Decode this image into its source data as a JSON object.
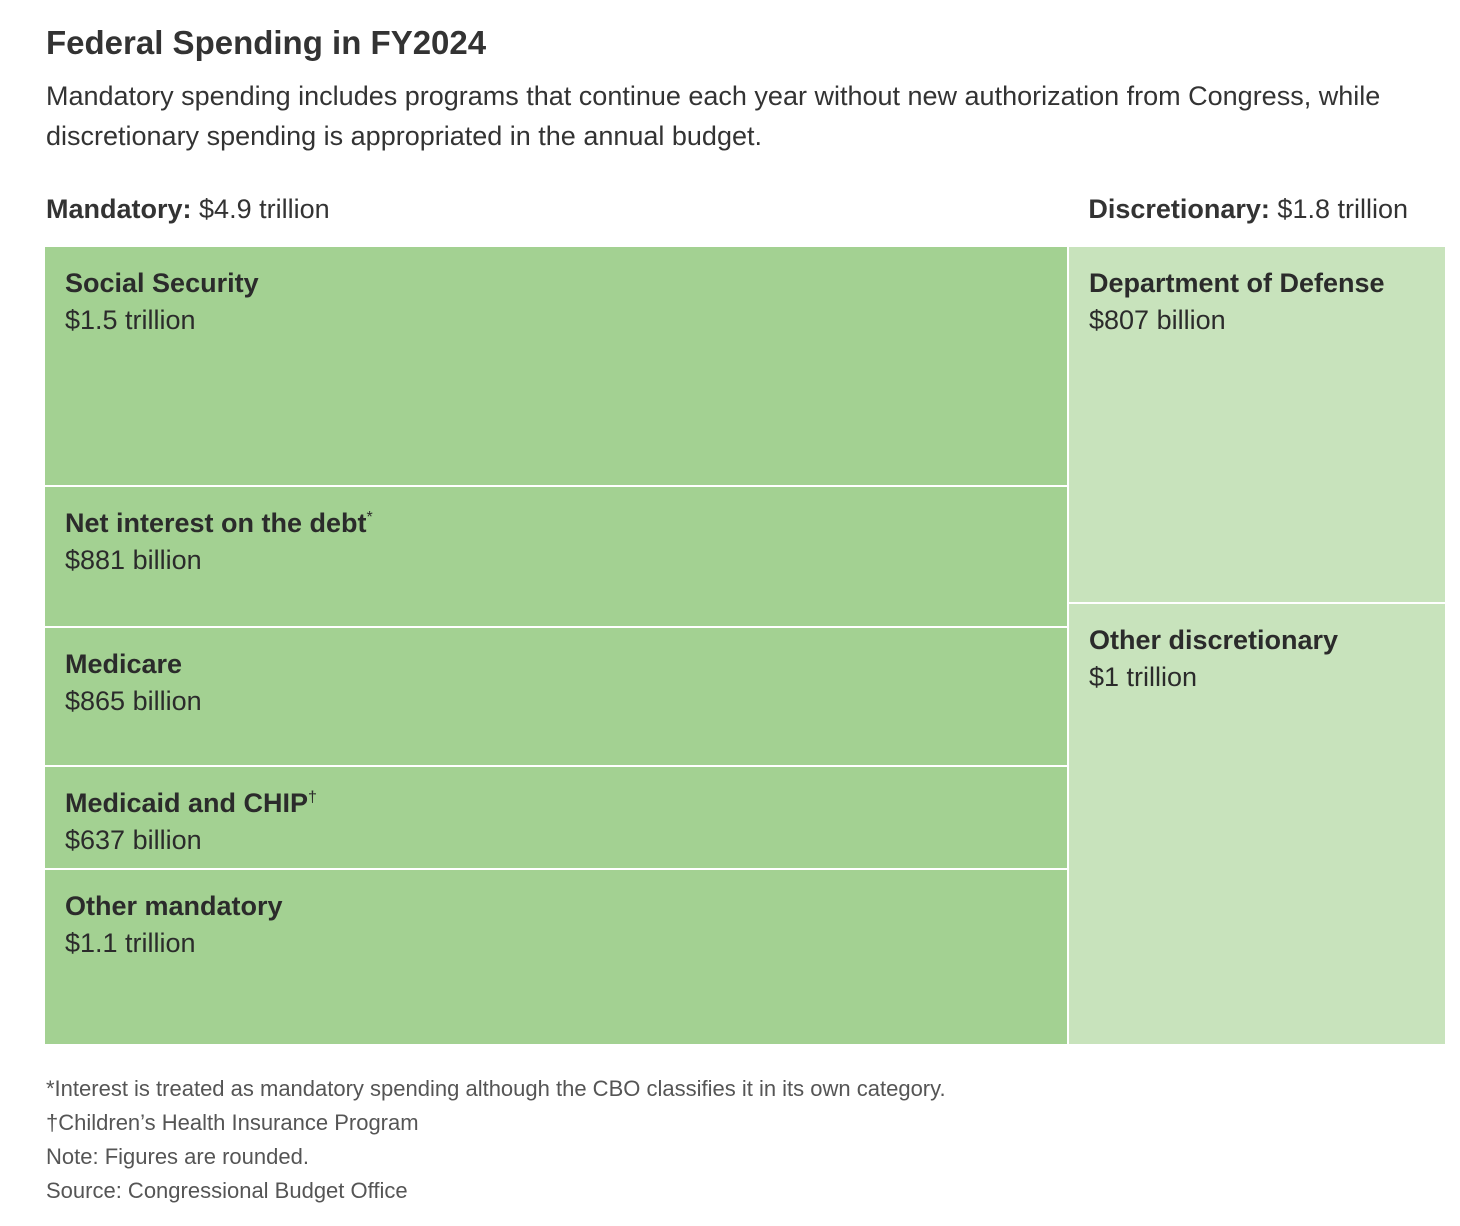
{
  "title": "Federal Spending in FY2024",
  "subtitle": "Mandatory spending includes programs that continue each year without new authorization from Congress, while discretionary spending is appropriated in the annual budget.",
  "groups": [
    {
      "key": "mandatory",
      "label": "Mandatory:",
      "total_label": "$4.9 trillion",
      "total": 4.9,
      "color": "#a3d192"
    },
    {
      "key": "discretionary",
      "label": "Discretionary:",
      "total_label": "$1.8 trillion",
      "total": 1.8,
      "color": "#c8e3bc"
    }
  ],
  "chart_data": {
    "type": "treemap",
    "units": "billions of dollars",
    "items": [
      {
        "group": "mandatory",
        "name": "Social Security",
        "mark": "",
        "value_label": "$1.5 trillion",
        "value": 1500
      },
      {
        "group": "mandatory",
        "name": "Net interest on the debt",
        "mark": "*",
        "value_label": "$881 billion",
        "value": 881
      },
      {
        "group": "mandatory",
        "name": "Medicare",
        "mark": "",
        "value_label": "$865 billion",
        "value": 865
      },
      {
        "group": "mandatory",
        "name": "Medicaid and CHIP",
        "mark": "†",
        "value_label": "$637 billion",
        "value": 637
      },
      {
        "group": "mandatory",
        "name": "Other mandatory",
        "mark": "",
        "value_label": "$1.1 trillion",
        "value": 1100
      },
      {
        "group": "discretionary",
        "name": "Department of Defense",
        "mark": "",
        "value_label": "$807 billion",
        "value": 807
      },
      {
        "group": "discretionary",
        "name": "Other discretionary",
        "mark": "",
        "value_label": "$1 trillion",
        "value": 1000
      }
    ]
  },
  "footnotes": [
    "*Interest is treated as mandatory spending although the CBO classifies it in its own category.",
    "†Children’s Health Insurance Program",
    "Note: Figures are rounded.",
    "Source: Congressional Budget Office"
  ]
}
